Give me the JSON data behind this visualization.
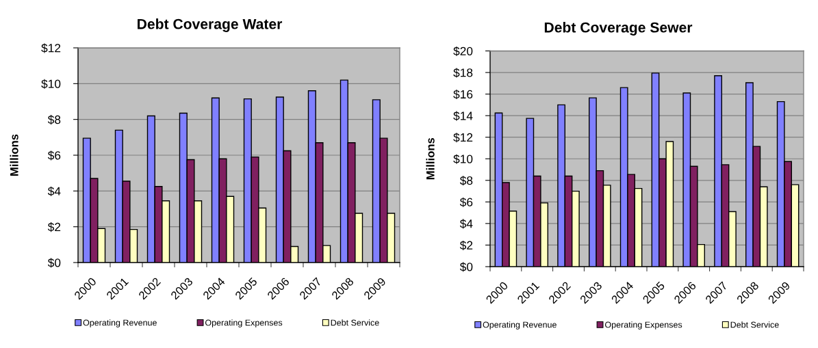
{
  "chart_data": [
    {
      "type": "bar",
      "title": "Debt Coverage Water",
      "ylabel": "Millions",
      "categories": [
        "2000",
        "2001",
        "2002",
        "2003",
        "2004",
        "2005",
        "2006",
        "2007",
        "2008",
        "2009"
      ],
      "series": [
        {
          "name": "Operating Revenue",
          "color": "#8080ff",
          "values": [
            6.95,
            7.4,
            8.2,
            8.35,
            9.2,
            9.15,
            9.25,
            9.6,
            10.2,
            9.1
          ]
        },
        {
          "name": "Operating Expenses",
          "color": "#802060",
          "values": [
            4.7,
            4.55,
            4.25,
            5.75,
            5.8,
            5.9,
            6.25,
            6.7,
            6.7,
            6.95
          ]
        },
        {
          "name": "Debt Service",
          "color": "#ffffc0",
          "values": [
            1.9,
            1.85,
            3.45,
            3.45,
            3.7,
            3.05,
            0.9,
            0.95,
            2.75,
            2.75
          ]
        }
      ],
      "ylim": [
        0,
        12
      ],
      "yticks": [
        {
          "value": 0,
          "label": "$0"
        },
        {
          "value": 2,
          "label": "$2"
        },
        {
          "value": 4,
          "label": "$4"
        },
        {
          "value": 6,
          "label": "$6"
        },
        {
          "value": 8,
          "label": "$8"
        },
        {
          "value": 10,
          "label": "$10"
        },
        {
          "value": 12,
          "label": "$12"
        }
      ],
      "grid": "y",
      "legend": "bottom"
    },
    {
      "type": "bar",
      "title": "Debt Coverage Sewer",
      "ylabel": "Millions",
      "categories": [
        "2000",
        "2001",
        "2002",
        "2003",
        "2004",
        "2005",
        "2006",
        "2007",
        "2008",
        "2009"
      ],
      "series": [
        {
          "name": "Operating Revenue",
          "color": "#8080ff",
          "values": [
            14.25,
            13.75,
            15.0,
            15.65,
            16.6,
            17.95,
            16.1,
            17.7,
            17.05,
            15.3
          ]
        },
        {
          "name": "Operating Expenses",
          "color": "#802060",
          "values": [
            7.8,
            8.4,
            8.4,
            8.9,
            8.55,
            10.0,
            9.3,
            9.45,
            11.15,
            9.75
          ]
        },
        {
          "name": "Debt Service",
          "color": "#ffffc0",
          "values": [
            5.15,
            5.9,
            7.0,
            7.55,
            7.25,
            11.6,
            2.05,
            5.1,
            7.4,
            7.6
          ]
        }
      ],
      "ylim": [
        0,
        20
      ],
      "yticks": [
        {
          "value": 0,
          "label": "$0"
        },
        {
          "value": 2,
          "label": "$2"
        },
        {
          "value": 4,
          "label": "$4"
        },
        {
          "value": 6,
          "label": "$6"
        },
        {
          "value": 8,
          "label": "$8"
        },
        {
          "value": 10,
          "label": "$10"
        },
        {
          "value": 12,
          "label": "$12"
        },
        {
          "value": 14,
          "label": "$14"
        },
        {
          "value": 16,
          "label": "$16"
        },
        {
          "value": 18,
          "label": "$18"
        },
        {
          "value": 20,
          "label": "$20"
        }
      ],
      "grid": "y",
      "legend": "bottom"
    }
  ]
}
